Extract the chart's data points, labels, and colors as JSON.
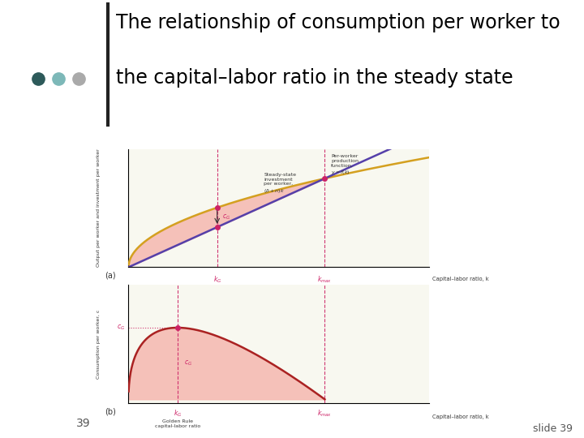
{
  "title_line1": "The relationship of consumption per worker to",
  "title_line2": "the capital–labor ratio in the steady state",
  "title_fontsize": 17,
  "slide_number": "39",
  "slide_39_text": "slide 39",
  "outer_bg": "#ffffff",
  "panel_outer_bg": "#d8d8c8",
  "panel_inner_bg": "#f0f0e0",
  "chart_bg": "#f8f8f0",
  "k_G": 0.28,
  "k_max": 0.62,
  "dots": [
    {
      "color": "#2d5a5a"
    },
    {
      "color": "#7db8b8"
    },
    {
      "color": "#aaaaaa"
    }
  ],
  "title_color": "#000000",
  "accent_color": "#cc2266",
  "production_color": "#d4a020",
  "investment_line_color": "#5540aa",
  "fill_color": "#f5b8b0",
  "text_color": "#333333",
  "vbar_color": "#222222",
  "label_font": 5.0
}
